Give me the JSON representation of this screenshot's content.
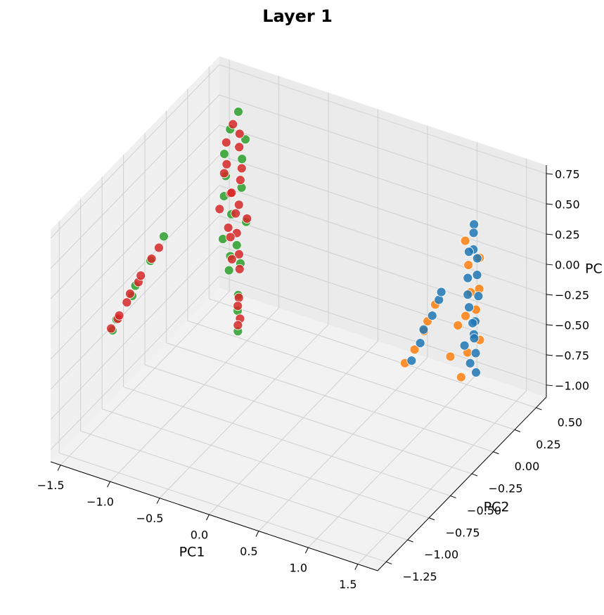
{
  "chart_data": {
    "type": "scatter3d",
    "title": "Layer 1",
    "x_label": "PC1",
    "y_label": "PC2",
    "z_label": "PC",
    "xlim": [
      -1.6,
      1.7
    ],
    "ylim": [
      -1.35,
      0.62
    ],
    "zlim": [
      -1.1,
      0.82
    ],
    "xticks": [
      {
        "value": -1.5,
        "label": "−1.5"
      },
      {
        "value": -1.0,
        "label": "−1.0"
      },
      {
        "value": -0.5,
        "label": "−0.5"
      },
      {
        "value": 0,
        "label": "0.0"
      },
      0.5,
      {
        "value": 1.0,
        "label": "1.0"
      },
      1.5
    ],
    "yticks": [
      {
        "value": -1.25,
        "label": "−1.25"
      },
      {
        "value": -1.0,
        "label": "−1.00"
      },
      {
        "value": -0.75,
        "label": "−0.75"
      },
      {
        "value": -0.5,
        "label": "−0.50"
      },
      {
        "value": -0.25,
        "label": "−0.25"
      },
      {
        "value": 0,
        "label": "0.00"
      },
      0.25,
      {
        "value": 0.5,
        "label": "0.50"
      }
    ],
    "zticks": [
      {
        "value": -1.0,
        "label": "−1.00"
      },
      {
        "value": -0.75,
        "label": "−0.75"
      },
      {
        "value": -0.5,
        "label": "−0.50"
      },
      {
        "value": -0.25,
        "label": "−0.25"
      },
      {
        "value": 0,
        "label": "0.00"
      },
      0.25,
      {
        "value": 0.5,
        "label": "0.50"
      },
      0.75
    ],
    "grid": true,
    "series": [
      {
        "color": "#ff7f0e",
        "x": [
          1.4,
          1.52,
          1.38,
          1.55,
          1.42,
          1.5,
          1.36,
          1.53,
          1.44,
          1.3,
          1.25,
          0.8,
          0.88,
          0.95,
          1.02,
          1.08,
          1.35
        ],
        "y": [
          0.02,
          0.05,
          0.08,
          0.01,
          0.06,
          0.03,
          0.07,
          0.04,
          0.0,
          0.05,
          0.02,
          0.01,
          0.03,
          0.06,
          0.02,
          0.04,
          0.03
        ],
        "z": [
          0.55,
          0.42,
          0.3,
          0.2,
          0.1,
          0.0,
          -0.12,
          -0.25,
          -0.35,
          -0.2,
          -0.45,
          -0.62,
          -0.5,
          -0.35,
          -0.22,
          -0.08,
          -0.6
        ]
      },
      {
        "color": "#1f77b4",
        "x": [
          1.48,
          1.45,
          1.5,
          1.42,
          1.47,
          1.52,
          1.4,
          1.46,
          1.49,
          1.43,
          1.51,
          1.44,
          1.47,
          1.41,
          1.48,
          1.45,
          1.5,
          1.43,
          0.85,
          0.92,
          0.98,
          1.05,
          1.1,
          1.15
        ],
        "y": [
          0.03,
          0.06,
          0.0,
          0.04,
          0.08,
          0.02,
          0.05,
          -0.02,
          0.07,
          0.03,
          0.01,
          0.06,
          0.04,
          0.0,
          0.05,
          0.02,
          0.03,
          0.09,
          0.03,
          0.05,
          0.02,
          0.04,
          0.06,
          0.03
        ],
        "z": [
          0.7,
          0.6,
          0.52,
          0.45,
          0.38,
          0.3,
          0.22,
          0.15,
          0.08,
          0.0,
          -0.08,
          -0.15,
          -0.22,
          -0.3,
          -0.38,
          -0.45,
          -0.52,
          -0.3,
          -0.6,
          -0.45,
          -0.3,
          -0.18,
          -0.05,
          0.05
        ]
      },
      {
        "color": "#2ca02c",
        "x": [
          -1.08,
          -1.12,
          -1.0,
          -1.17,
          -1.06,
          -1.13,
          -1.03,
          -1.19,
          -1.09,
          -1.01,
          -1.15,
          -1.07,
          -1.11,
          -1.05,
          -1.14,
          -1.03,
          -1.07,
          -1.05,
          -1.52,
          -1.42,
          -1.33,
          -1.22,
          -1.12,
          -1.02
        ],
        "y": [
          0.24,
          0.19,
          0.23,
          0.18,
          0.26,
          0.15,
          0.22,
          0.2,
          0.17,
          0.25,
          0.14,
          0.21,
          0.18,
          0.23,
          0.2,
          0.18,
          0.22,
          0.2,
          -0.72,
          -0.79,
          -0.71,
          -0.8,
          -0.74,
          -0.7
        ],
        "z": [
          0.78,
          0.66,
          0.58,
          0.45,
          0.38,
          0.3,
          0.18,
          0.08,
          -0.02,
          -0.12,
          -0.22,
          -0.3,
          -0.38,
          -0.46,
          -0.52,
          -0.68,
          -0.85,
          -1.0,
          -0.45,
          -0.28,
          -0.12,
          0.06,
          0.25,
          0.45
        ]
      },
      {
        "color": "#d62728",
        "x": [
          -1.1,
          -1.05,
          -1.15,
          -1.08,
          -1.12,
          -1.02,
          -1.18,
          -1.06,
          -1.1,
          -1.14,
          -1.04,
          -1.2,
          -1.09,
          -1.01,
          -1.13,
          -1.07,
          -1.16,
          -1.03,
          -1.11,
          -1.05,
          -1.04,
          -1.06,
          -1.02,
          -1.05,
          -1.5,
          -1.45,
          -1.4,
          -1.35,
          -1.3,
          -1.25,
          -1.2,
          -1.1,
          -1.0
        ],
        "y": [
          0.2,
          0.22,
          0.18,
          0.25,
          0.15,
          0.21,
          0.19,
          0.24,
          0.17,
          0.23,
          0.2,
          0.16,
          0.22,
          0.26,
          0.18,
          0.21,
          0.24,
          0.19,
          0.2,
          0.22,
          0.2,
          0.21,
          0.19,
          0.2,
          -0.76,
          -0.74,
          -0.78,
          -0.75,
          -0.77,
          -0.73,
          -0.76,
          -0.75,
          -0.78
        ],
        "z": [
          0.7,
          0.62,
          0.55,
          0.48,
          0.4,
          0.35,
          0.28,
          0.22,
          0.15,
          0.1,
          0.05,
          0.0,
          -0.05,
          -0.1,
          -0.15,
          -0.2,
          -0.28,
          -0.35,
          -0.42,
          -0.5,
          -0.72,
          -0.8,
          -0.88,
          -0.95,
          -0.4,
          -0.32,
          -0.25,
          -0.15,
          -0.05,
          0.03,
          0.12,
          0.28,
          0.42
        ]
      }
    ]
  }
}
